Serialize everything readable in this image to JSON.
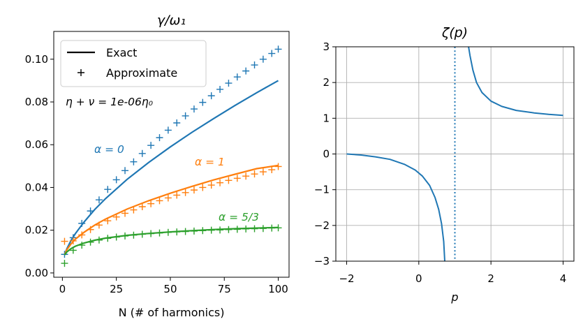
{
  "chart_data": [
    {
      "type": "line",
      "title": "γ/ω₁",
      "xlabel": "N (# of harmonics)",
      "ylabel": "",
      "xlim": [
        -4,
        105
      ],
      "ylim": [
        -0.002,
        0.113
      ],
      "xticks": [
        0,
        25,
        50,
        75,
        100
      ],
      "xtick_labels": [
        "0",
        "25",
        "50",
        "75",
        "100"
      ],
      "yticks": [
        0.0,
        0.02,
        0.04,
        0.06,
        0.08,
        0.1
      ],
      "ytick_labels": [
        "0.00",
        "0.02",
        "0.04",
        "0.06",
        "0.08",
        "0.10"
      ],
      "grid": false,
      "legend": {
        "placement": "top-left",
        "entries": [
          {
            "label": "Exact",
            "marker": "line",
            "color": "#000000"
          },
          {
            "label": "Approximate",
            "marker": "plus",
            "color": "#000000"
          }
        ]
      },
      "annotations": [
        {
          "text": "η + ν = 1e-06η₀",
          "color": "#000000"
        },
        {
          "text": "α = 0",
          "color": "#1f77b4"
        },
        {
          "text": "α = 1",
          "color": "#ff7f0e"
        },
        {
          "text": "α = 5/3",
          "color": "#2ca02c"
        }
      ],
      "series": [
        {
          "label": "α = 0",
          "color": "#1f77b4",
          "exact": {
            "x": [
              1,
              2,
              4,
              6,
              10,
              15,
              20,
              30,
              40,
              50,
              60,
              70,
              80,
              90,
              100
            ],
            "y": [
              0.0085,
              0.0112,
              0.0152,
              0.0184,
              0.0238,
              0.0297,
              0.0348,
              0.0438,
              0.0517,
              0.059,
              0.0658,
              0.0722,
              0.0784,
              0.0843,
              0.09
            ]
          },
          "approx": {
            "x": [
              1,
              5,
              9,
              13,
              17,
              21,
              25,
              29,
              33,
              37,
              41,
              45,
              49,
              53,
              57,
              61,
              65,
              69,
              73,
              77,
              81,
              85,
              89,
              93,
              97,
              100
            ],
            "y": [
              0.0087,
              0.0165,
              0.0232,
              0.029,
              0.0342,
              0.0391,
              0.0436,
              0.0479,
              0.052,
              0.0559,
              0.0597,
              0.0633,
              0.0668,
              0.0702,
              0.0735,
              0.0767,
              0.0798,
              0.0829,
              0.0859,
              0.0888,
              0.0917,
              0.0945,
              0.0973,
              0.1,
              0.1027,
              0.1047
            ]
          }
        },
        {
          "label": "α = 1",
          "color": "#ff7f0e",
          "exact": {
            "x": [
              1,
              2,
              4,
              6,
              10,
              15,
              20,
              30,
              40,
              50,
              60,
              70,
              80,
              90,
              100
            ],
            "y": [
              0.0085,
              0.0108,
              0.0136,
              0.0158,
              0.019,
              0.0224,
              0.0252,
              0.0299,
              0.0338,
              0.0373,
              0.0405,
              0.0435,
              0.0462,
              0.0488,
              0.0503
            ]
          },
          "approx": {
            "x": [
              1,
              5,
              9,
              13,
              17,
              21,
              25,
              29,
              33,
              37,
              41,
              45,
              49,
              53,
              57,
              61,
              65,
              69,
              73,
              77,
              81,
              85,
              89,
              93,
              97,
              100
            ],
            "y": [
              0.0148,
              0.015,
              0.0178,
              0.0203,
              0.0224,
              0.0244,
              0.0262,
              0.0279,
              0.0295,
              0.031,
              0.0324,
              0.0338,
              0.0351,
              0.0364,
              0.0376,
              0.0388,
              0.04,
              0.0411,
              0.0422,
              0.0433,
              0.0443,
              0.0453,
              0.0463,
              0.0473,
              0.0483,
              0.0498
            ]
          }
        },
        {
          "label": "α = 5/3",
          "color": "#2ca02c",
          "exact": {
            "x": [
              1,
              2,
              4,
              6,
              10,
              15,
              20,
              30,
              40,
              50,
              60,
              70,
              80,
              90,
              100
            ],
            "y": [
              0.0085,
              0.0098,
              0.0114,
              0.0125,
              0.014,
              0.0153,
              0.0163,
              0.0176,
              0.0185,
              0.0192,
              0.0198,
              0.0203,
              0.0207,
              0.021,
              0.0213
            ]
          },
          "approx": {
            "x": [
              1,
              5,
              9,
              13,
              17,
              21,
              25,
              29,
              33,
              37,
              41,
              45,
              49,
              53,
              57,
              61,
              65,
              69,
              73,
              77,
              81,
              85,
              89,
              93,
              97,
              100
            ],
            "y": [
              0.0045,
              0.0106,
              0.013,
              0.0144,
              0.0154,
              0.0162,
              0.0168,
              0.0173,
              0.0177,
              0.0181,
              0.0184,
              0.0187,
              0.019,
              0.0192,
              0.0194,
              0.0196,
              0.0198,
              0.02,
              0.0201,
              0.0203,
              0.0204,
              0.0206,
              0.0207,
              0.0208,
              0.021,
              0.0211
            ]
          }
        }
      ]
    },
    {
      "type": "line",
      "title": "ζ(p)",
      "xlabel": "p",
      "ylabel": "",
      "xlim": [
        -2.3,
        4.3
      ],
      "ylim": [
        -3,
        3
      ],
      "xticks": [
        -2,
        0,
        2,
        4
      ],
      "xtick_labels": [
        "−2",
        "0",
        "2",
        "4"
      ],
      "yticks": [
        -3,
        -2,
        -1,
        0,
        1,
        2,
        3
      ],
      "ytick_labels": [
        "−3",
        "−2",
        "−1",
        "0",
        "1",
        "2",
        "3"
      ],
      "grid": true,
      "vline": {
        "x": 1,
        "style": "dotted",
        "color": "#1f77b4"
      },
      "series": [
        {
          "label": "",
          "color": "#1f77b4",
          "segments": [
            {
              "x": [
                -2.0,
                -1.6,
                -1.2,
                -0.8,
                -0.4,
                -0.1,
                0.1,
                0.3,
                0.45,
                0.55,
                0.63,
                0.69,
                0.72
              ],
              "y": [
                0.0,
                -0.03,
                -0.08,
                -0.15,
                -0.29,
                -0.45,
                -0.62,
                -0.88,
                -1.22,
                -1.55,
                -1.95,
                -2.45,
                -3.0
              ]
            },
            {
              "x": [
                1.38,
                1.42,
                1.5,
                1.6,
                1.75,
                2.0,
                2.3,
                2.7,
                3.2,
                3.6,
                4.0
              ],
              "y": [
                3.0,
                2.75,
                2.35,
                2.0,
                1.72,
                1.48,
                1.33,
                1.22,
                1.15,
                1.11,
                1.08
              ]
            }
          ]
        }
      ]
    }
  ]
}
